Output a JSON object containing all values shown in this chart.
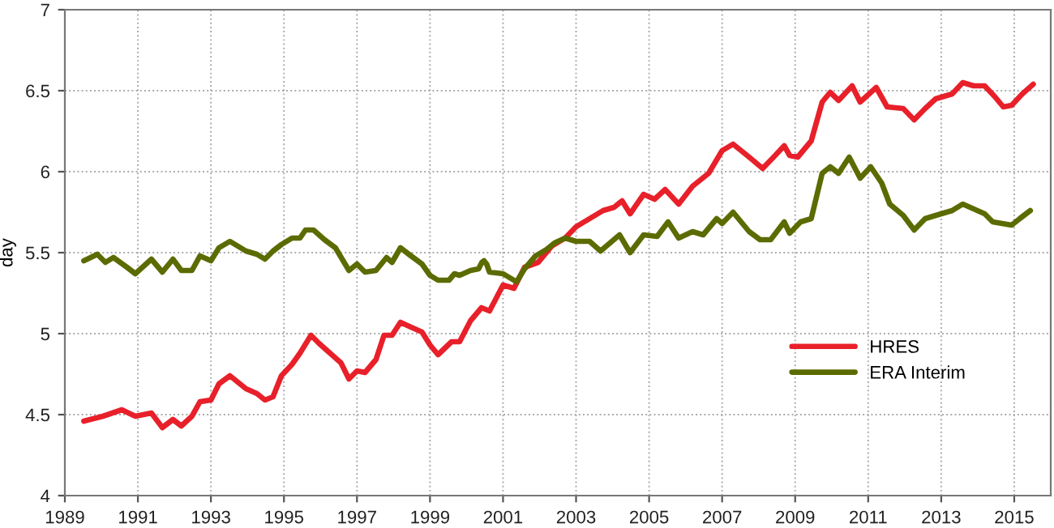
{
  "chart_data": {
    "type": "line",
    "ylabel": "day",
    "xlim": [
      1989,
      2016
    ],
    "ylim": [
      4,
      7
    ],
    "xticks": [
      1989,
      1991,
      1993,
      1995,
      1997,
      1999,
      2001,
      2003,
      2005,
      2007,
      2009,
      2011,
      2013,
      2015
    ],
    "yticks": [
      4,
      4.5,
      5,
      5.5,
      6,
      6.5,
      7
    ],
    "grid": true,
    "legend": "bottom right",
    "line_style": "solid",
    "series": [
      {
        "name": "HRES",
        "color": "#e8202a",
        "x": [
          1989.52,
          1990.04,
          1990.56,
          1990.93,
          1991.37,
          1991.67,
          1991.96,
          1992.19,
          1992.48,
          1992.7,
          1993.0,
          1993.22,
          1993.52,
          1993.96,
          1994.26,
          1994.48,
          1994.7,
          1994.93,
          1995.22,
          1995.44,
          1995.74,
          1995.96,
          1996.26,
          1996.56,
          1996.78,
          1997.0,
          1997.22,
          1997.52,
          1997.74,
          1997.96,
          1998.19,
          1998.48,
          1998.78,
          1999.0,
          1999.22,
          1999.59,
          1999.81,
          2000.11,
          2000.41,
          2000.63,
          2001.0,
          2001.3,
          2001.59,
          2001.96,
          2002.33,
          2002.7,
          2003.0,
          2003.37,
          2003.74,
          2004.04,
          2004.26,
          2004.48,
          2004.85,
          2005.15,
          2005.44,
          2005.81,
          2006.19,
          2006.63,
          2007.0,
          2007.3,
          2007.74,
          2008.11,
          2008.41,
          2008.7,
          2008.85,
          2009.07,
          2009.44,
          2009.74,
          2009.96,
          2010.19,
          2010.56,
          2010.78,
          2011.22,
          2011.52,
          2011.96,
          2012.26,
          2012.56,
          2012.85,
          2013.3,
          2013.59,
          2013.89,
          2014.19,
          2014.48,
          2014.7,
          2014.93,
          2015.22,
          2015.52
        ],
        "values": [
          4.46,
          4.49,
          4.53,
          4.49,
          4.51,
          4.42,
          4.47,
          4.43,
          4.49,
          4.58,
          4.59,
          4.69,
          4.74,
          4.66,
          4.63,
          4.59,
          4.61,
          4.74,
          4.81,
          4.88,
          4.99,
          4.94,
          4.88,
          4.82,
          4.72,
          4.77,
          4.76,
          4.84,
          4.99,
          4.99,
          5.07,
          5.04,
          5.01,
          4.93,
          4.87,
          4.95,
          4.95,
          5.08,
          5.16,
          5.14,
          5.3,
          5.28,
          5.41,
          5.44,
          5.54,
          5.59,
          5.66,
          5.71,
          5.76,
          5.78,
          5.82,
          5.74,
          5.86,
          5.83,
          5.89,
          5.8,
          5.91,
          5.99,
          6.13,
          6.17,
          6.09,
          6.02,
          6.09,
          6.16,
          6.1,
          6.09,
          6.19,
          6.43,
          6.49,
          6.44,
          6.53,
          6.43,
          6.52,
          6.4,
          6.39,
          6.32,
          6.39,
          6.45,
          6.48,
          6.55,
          6.53,
          6.53,
          6.46,
          6.4,
          6.41,
          6.48,
          6.54
        ]
      },
      {
        "name": "ERA Interim",
        "color": "#5c6b00",
        "x": [
          1989.52,
          1989.89,
          1990.11,
          1990.33,
          1990.7,
          1990.93,
          1991.37,
          1991.67,
          1991.96,
          1992.19,
          1992.48,
          1992.7,
          1993.0,
          1993.22,
          1993.52,
          1993.96,
          1994.26,
          1994.48,
          1994.7,
          1994.93,
          1995.22,
          1995.44,
          1995.59,
          1995.81,
          1996.11,
          1996.41,
          1996.78,
          1997.0,
          1997.22,
          1997.52,
          1997.81,
          1997.96,
          1998.19,
          1998.48,
          1998.78,
          1999.0,
          1999.22,
          1999.52,
          1999.67,
          1999.81,
          2000.11,
          2000.33,
          2000.42,
          2000.48,
          2000.55,
          2000.63,
          2001.0,
          2001.37,
          2001.59,
          2001.89,
          2002.19,
          2002.41,
          2002.7,
          2003.0,
          2003.37,
          2003.67,
          2004.19,
          2004.48,
          2004.85,
          2005.22,
          2005.52,
          2005.81,
          2006.19,
          2006.48,
          2006.85,
          2007.0,
          2007.3,
          2007.74,
          2008.04,
          2008.33,
          2008.7,
          2008.85,
          2009.15,
          2009.44,
          2009.74,
          2009.96,
          2010.19,
          2010.48,
          2010.78,
          2011.07,
          2011.37,
          2011.59,
          2011.96,
          2012.26,
          2012.56,
          2012.85,
          2013.3,
          2013.59,
          2013.89,
          2014.19,
          2014.41,
          2014.93,
          2015.15,
          2015.44
        ],
        "values": [
          5.45,
          5.49,
          5.44,
          5.47,
          5.41,
          5.37,
          5.46,
          5.38,
          5.46,
          5.39,
          5.39,
          5.48,
          5.45,
          5.53,
          5.57,
          5.51,
          5.49,
          5.46,
          5.51,
          5.55,
          5.59,
          5.59,
          5.64,
          5.64,
          5.58,
          5.53,
          5.39,
          5.43,
          5.38,
          5.39,
          5.47,
          5.44,
          5.53,
          5.48,
          5.43,
          5.36,
          5.33,
          5.33,
          5.37,
          5.36,
          5.39,
          5.4,
          5.44,
          5.45,
          5.43,
          5.38,
          5.37,
          5.32,
          5.4,
          5.48,
          5.52,
          5.56,
          5.59,
          5.57,
          5.57,
          5.51,
          5.61,
          5.5,
          5.61,
          5.6,
          5.69,
          5.59,
          5.63,
          5.61,
          5.71,
          5.68,
          5.75,
          5.63,
          5.58,
          5.58,
          5.69,
          5.62,
          5.69,
          5.71,
          5.99,
          6.03,
          5.99,
          6.09,
          5.96,
          6.03,
          5.93,
          5.8,
          5.73,
          5.64,
          5.71,
          5.73,
          5.76,
          5.8,
          5.77,
          5.74,
          5.69,
          5.67,
          5.71,
          5.76
        ]
      }
    ]
  }
}
